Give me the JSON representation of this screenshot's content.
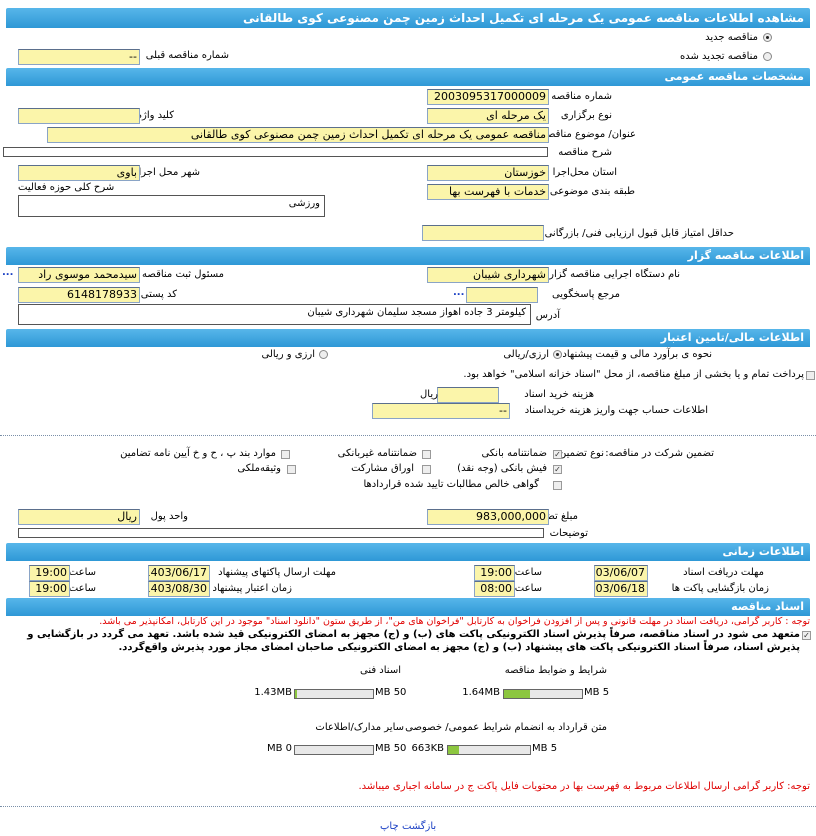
{
  "title": "مشاهده اطلاعات مناقصه عمومی یک مرحله ای تکمیل احداث زمین چمن مصنوعی کوی طالقانی",
  "tender_type": {
    "new": "مناقصه جدید",
    "renewed": "مناقصه تجدید شده",
    "selected": "new",
    "prev_label": "شماره مناقصه قبلی",
    "prev_value": "--"
  },
  "general": {
    "header": "مشخصات مناقصه عمومی",
    "number_label": "شماره مناقصه",
    "number": "2003095317000009",
    "holding_label": "نوع برگزاری",
    "holding": "یک مرحله ای",
    "keyword_label": "کلید واژه",
    "keyword": "",
    "subject_label": "عنوان/ موضوع مناقصه",
    "subject": "مناقصه عمومی یک مرحله ای تکمیل احداث زمین چمن مصنوعی کوی طالقانی",
    "desc_label": "شرح مناقصه",
    "desc": "",
    "province_label": "استان محل‌اجرا",
    "province": "خوزستان",
    "city_label": "شهر محل اجرا",
    "city": "باوی",
    "category_label": "طبقه بندی موضوعی",
    "category": "خدمات با فهرست بها",
    "activity_label": "شرح کلی حوزه فعالیت",
    "activity": "ورزشی",
    "min_score_label": "حداقل امتیاز قابل قبول ارزیابی فنی/ بازرگانی",
    "min_score": ""
  },
  "organizer": {
    "header": "اطلاعات مناقصه گزار",
    "org_label": "نام دستگاه اجرایی مناقصه گزار",
    "org": "شهرداری شیبان",
    "registrar_label": "مسئول ثبت مناقصه",
    "registrar": "سیدمحمد موسوی راد",
    "ref_label": "مرجع پاسخگویی",
    "ref": "",
    "postal_label": "کد پستی",
    "postal": "6148178933",
    "address_label": "آدرس",
    "address": "کیلومتر 3 جاده اهواز مسجد سلیمان شهرداری شیبان",
    "more": "..."
  },
  "finance": {
    "header": "اطلاعات مالی/تامین اعتبار",
    "estimate_label": "نحوه ی برآورد مالی و قیمت پیشنهادی",
    "opt1": "ارزی/ریالی",
    "opt2": "ارزی و ریالی",
    "treasury": "پرداخت تمام و یا بخشی از مبلغ مناقصه، از محل \"اسناد خزانه اسلامی\" خواهد بود.",
    "doc_cost_label": "هزینه خرید اسناد",
    "doc_cost": "",
    "rial": "ریال",
    "account_label": "اطلاعات حساب جهت واریز هزینه خریداسناد",
    "account": "--",
    "guarantee_label": "تضمین شرکت در مناقصه:",
    "guarantee_type_label": "نوع تضمین",
    "g_bank": "ضمانتنامه بانکی",
    "g_nonbank": "ضمانتنامه غیربانکی",
    "g_items": "موارد بند پ ، ح و خ آیین نامه تضامین",
    "g_cash": "فیش بانکی (وجه نقد)",
    "g_bonds": "اوراق مشارکت",
    "g_property": "وثیقه‌ملکی",
    "g_cert": "گواهی خالص مطالبات تایید شده قراردادها",
    "amount_label": "مبلغ تضمین",
    "amount": "983,000,000",
    "currency_label": "واحد پول",
    "currency": "ریال",
    "notes_label": "توضیحات",
    "notes": ""
  },
  "timing": {
    "header": "اطلاعات زمانی",
    "doc_deadline_label": "مهلت دریافت اسناد",
    "doc_deadline": "1403/06/07",
    "doc_time": "19:00",
    "send_label": "مهلت ارسال پاکتهای پیشنهاد",
    "send": "1403/06/17",
    "send_time": "19:00",
    "open_label": "زمان بازگشایی پاکت ها",
    "open": "1403/06/18",
    "open_time": "08:00",
    "valid_label": "زمان اعتبار پیشنهاد",
    "valid": "1403/08/30",
    "valid_time": "19:00",
    "time_label": "ساعت"
  },
  "docs": {
    "header": "اسناد مناقصه",
    "note1": "توجه : کاربر گرامی، دریافت اسناد در مهلت قانونی و پس از افزودن فراخوان به کارتابل \"فراخوان های من\"، از طریق ستون \"دانلود اسناد\" موجود در این کارتابل، امکانپذیر می باشد.",
    "commit": "متعهد می شود در اسناد مناقصه، صرفاً پذیرش اسناد الکترونیکی پاکت های (ب) و (ج) مجهز به امضای الکترونیکی قید شده باشد. تعهد می گردد در بازگشایی و پذیرش اسناد، صرفاً اسناد الکترونیکی پاکت های پیشنهاد (ب) و (ج) مجهز به امضای الکترونیکی صاحبان امضای مجاز مورد پذیرش واقع‌گردد.",
    "files": [
      {
        "label": "شرایط و ضوابط مناقصه",
        "size": "1.64MB",
        "max": "5 MB",
        "fill": 0.33
      },
      {
        "label": "اسناد فنی",
        "size": "1.43MB",
        "max": "50 MB",
        "fill": 0.03
      },
      {
        "label": "متن قرارداد به انضمام شرایط عمومی/ خصوصی",
        "size": "663KB",
        "max": "5 MB",
        "fill": 0.13
      },
      {
        "label": "سایر مدارک/اطلاعات",
        "size": "0 MB",
        "max": "50 MB",
        "fill": 0
      }
    ],
    "note2": "توجه: کاربر گرامی ارسال اطلاعات مربوط به فهرست بها در محتویات فایل پاکت ج در سامانه اجباری میباشد."
  },
  "footer": {
    "print": "چاپ",
    "back": "بازگشت"
  },
  "colors": {
    "header": "#3ba4df",
    "field": "#fbf5aa",
    "warning": "#e00000",
    "progress": "#8cc63f"
  }
}
